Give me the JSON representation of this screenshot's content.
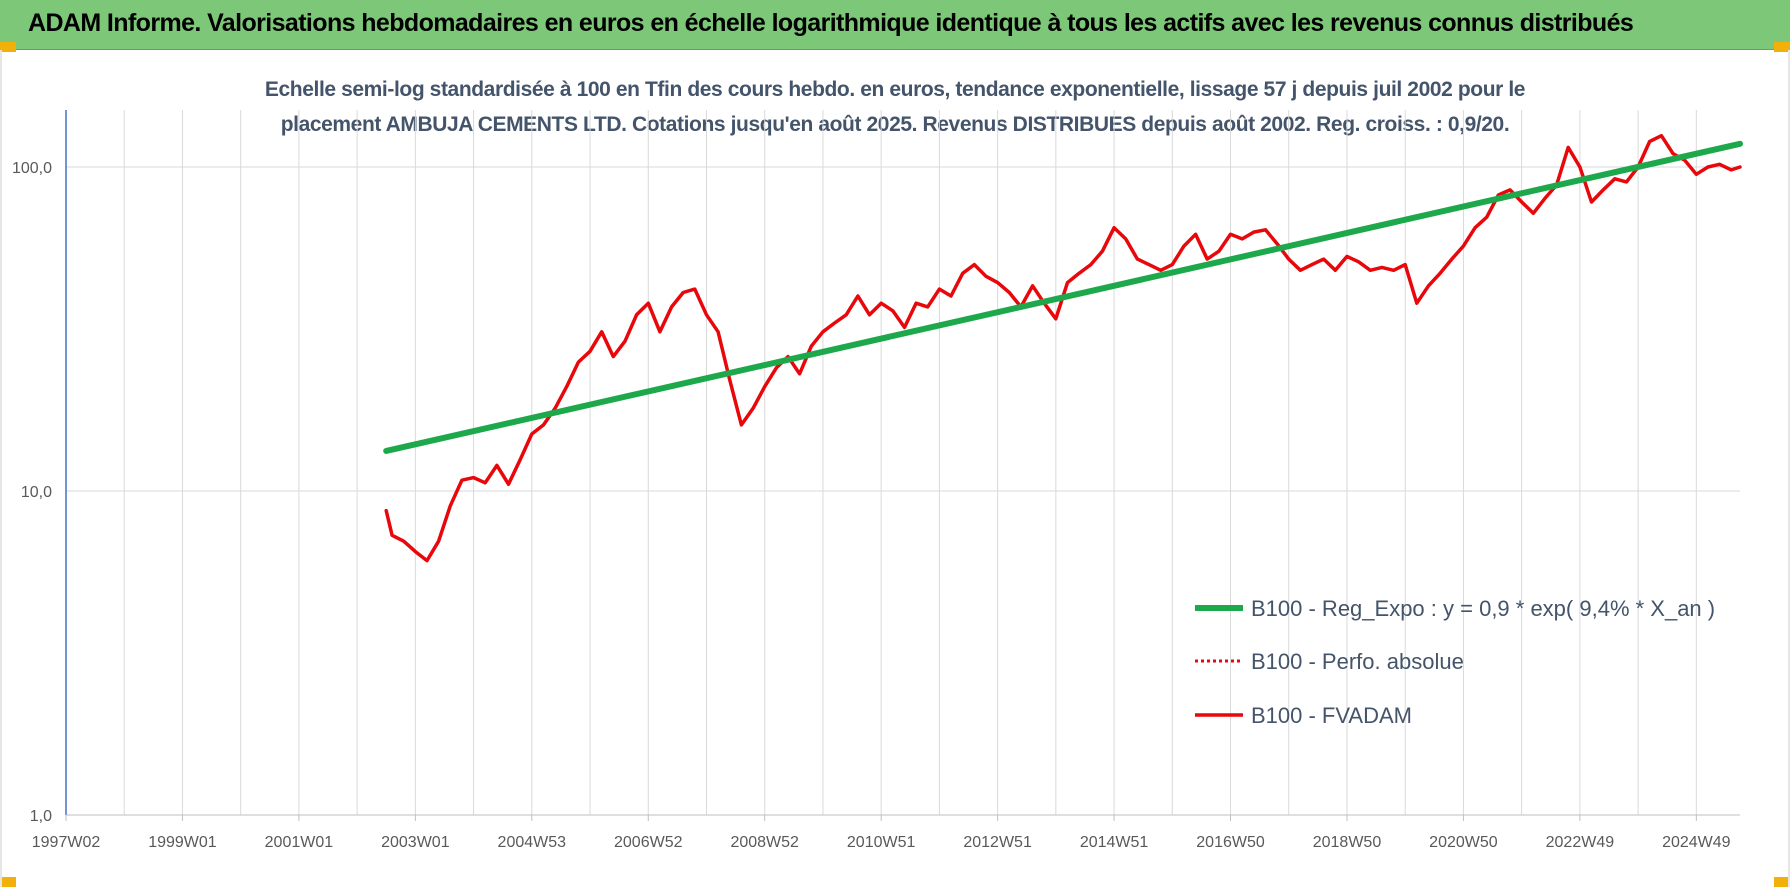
{
  "header": {
    "title": "ADAM Informe. Valorisations hebdomadaires en euros en échelle logarithmique identique à tous les actifs avec les revenus connus distribués"
  },
  "colors": {
    "banner": "#7dc778",
    "trend": "#1ea84c",
    "fvadam": "#e8070a",
    "perfo": "#e8070a",
    "grid": "#d9d9d9",
    "axis": "#4472c4"
  },
  "chart_data": {
    "type": "line",
    "title_line1": "Echelle semi-log standardisée à 100 en Tfin des cours hebdo. en euros, tendance exponentielle, lissage 57 j depuis juil 2002 pour le",
    "title_line2": "placement AMBUJA CEMENTS LTD. Cotations jusqu'en août 2025. Revenus DISTRIBUES depuis août 2002. Reg. croiss. : 0,9/20.",
    "y_scale": "log",
    "ylim": [
      1,
      150
    ],
    "xlim": [
      1997.0,
      2025.75
    ],
    "y_ticks": [
      {
        "value": 1,
        "label": "1,0"
      },
      {
        "value": 10,
        "label": "10,0"
      },
      {
        "value": 100,
        "label": "100,0"
      }
    ],
    "x_ticks": [
      {
        "value": 1997.0,
        "label": "1997W02"
      },
      {
        "value": 1999.0,
        "label": "1999W01"
      },
      {
        "value": 2001.0,
        "label": "2001W01"
      },
      {
        "value": 2003.0,
        "label": "2003W01"
      },
      {
        "value": 2005.0,
        "label": "2004W53"
      },
      {
        "value": 2007.0,
        "label": "2006W52"
      },
      {
        "value": 2009.0,
        "label": "2008W52"
      },
      {
        "value": 2011.0,
        "label": "2010W51"
      },
      {
        "value": 2013.0,
        "label": "2012W51"
      },
      {
        "value": 2015.0,
        "label": "2014W51"
      },
      {
        "value": 2017.0,
        "label": "2016W50"
      },
      {
        "value": 2019.0,
        "label": "2018W50"
      },
      {
        "value": 2021.0,
        "label": "2020W50"
      },
      {
        "value": 2023.0,
        "label": "2022W49"
      },
      {
        "value": 2025.0,
        "label": "2024W49"
      }
    ],
    "legend_position": "bottom-right",
    "grid": true,
    "series": [
      {
        "name": "B100 - Reg_Expo : y = 0,9 * exp( 9,4% *  X_an )",
        "style": "solid-thick",
        "x": [
          2002.5,
          2025.75
        ],
        "y": [
          13.3,
          118
        ]
      },
      {
        "name": "B100 - Perfo. absolue",
        "style": "dotted",
        "x": [],
        "y": []
      },
      {
        "name": "B100 - FVADAM",
        "style": "solid",
        "x": [
          2002.5,
          2002.6,
          2002.8,
          2003.0,
          2003.2,
          2003.4,
          2003.6,
          2003.8,
          2004.0,
          2004.2,
          2004.4,
          2004.6,
          2004.8,
          2005.0,
          2005.2,
          2005.4,
          2005.6,
          2005.8,
          2006.0,
          2006.2,
          2006.4,
          2006.6,
          2006.8,
          2007.0,
          2007.2,
          2007.4,
          2007.6,
          2007.8,
          2008.0,
          2008.2,
          2008.4,
          2008.6,
          2008.8,
          2009.0,
          2009.2,
          2009.4,
          2009.6,
          2009.8,
          2010.0,
          2010.2,
          2010.4,
          2010.6,
          2010.8,
          2011.0,
          2011.2,
          2011.4,
          2011.6,
          2011.8,
          2012.0,
          2012.2,
          2012.4,
          2012.6,
          2012.8,
          2013.0,
          2013.2,
          2013.4,
          2013.6,
          2013.8,
          2014.0,
          2014.2,
          2014.4,
          2014.6,
          2014.8,
          2015.0,
          2015.2,
          2015.4,
          2015.6,
          2015.8,
          2016.0,
          2016.2,
          2016.4,
          2016.6,
          2016.8,
          2017.0,
          2017.2,
          2017.4,
          2017.6,
          2017.8,
          2018.0,
          2018.2,
          2018.4,
          2018.6,
          2018.8,
          2019.0,
          2019.2,
          2019.4,
          2019.6,
          2019.8,
          2020.0,
          2020.2,
          2020.4,
          2020.6,
          2020.8,
          2021.0,
          2021.2,
          2021.4,
          2021.6,
          2021.8,
          2022.0,
          2022.2,
          2022.4,
          2022.6,
          2022.8,
          2023.0,
          2023.2,
          2023.4,
          2023.6,
          2023.8,
          2024.0,
          2024.2,
          2024.4,
          2024.6,
          2024.8,
          2025.0,
          2025.2,
          2025.4,
          2025.6,
          2025.75
        ],
        "y": [
          8.7,
          7.3,
          7.0,
          6.5,
          6.1,
          7.0,
          9.0,
          10.8,
          11.0,
          10.6,
          12.0,
          10.5,
          12.5,
          15.0,
          16.0,
          18.0,
          21.0,
          25.0,
          27.0,
          31.0,
          26.0,
          29.0,
          35.0,
          38.0,
          31.0,
          37.0,
          41.0,
          42.0,
          35.0,
          31.0,
          22.0,
          16.0,
          18.0,
          21.0,
          24.0,
          26.0,
          23.0,
          28.0,
          31.0,
          33.0,
          35.0,
          40.0,
          35.0,
          38.0,
          36.0,
          32.0,
          38.0,
          37.0,
          42.0,
          40.0,
          47.0,
          50.0,
          46.0,
          44.0,
          41.0,
          37.0,
          43.0,
          38.0,
          34.0,
          44.0,
          47.0,
          50.0,
          55.0,
          65.0,
          60.0,
          52.0,
          50.0,
          48.0,
          50.0,
          57.0,
          62.0,
          52.0,
          55.0,
          62.0,
          60.0,
          63.0,
          64.0,
          58.0,
          52.0,
          48.0,
          50.0,
          52.0,
          48.0,
          53.0,
          51.0,
          48.0,
          49.0,
          48.0,
          50.0,
          38.0,
          43.0,
          47.0,
          52.0,
          57.0,
          65.0,
          70.0,
          82.0,
          85.0,
          78.0,
          72.0,
          80.0,
          88.0,
          115.0,
          100.0,
          78.0,
          85.0,
          92.0,
          90.0,
          100.0,
          120.0,
          125.0,
          110.0,
          105.0,
          95.0,
          100.0,
          102.0,
          98.0,
          100.0
        ]
      }
    ]
  }
}
